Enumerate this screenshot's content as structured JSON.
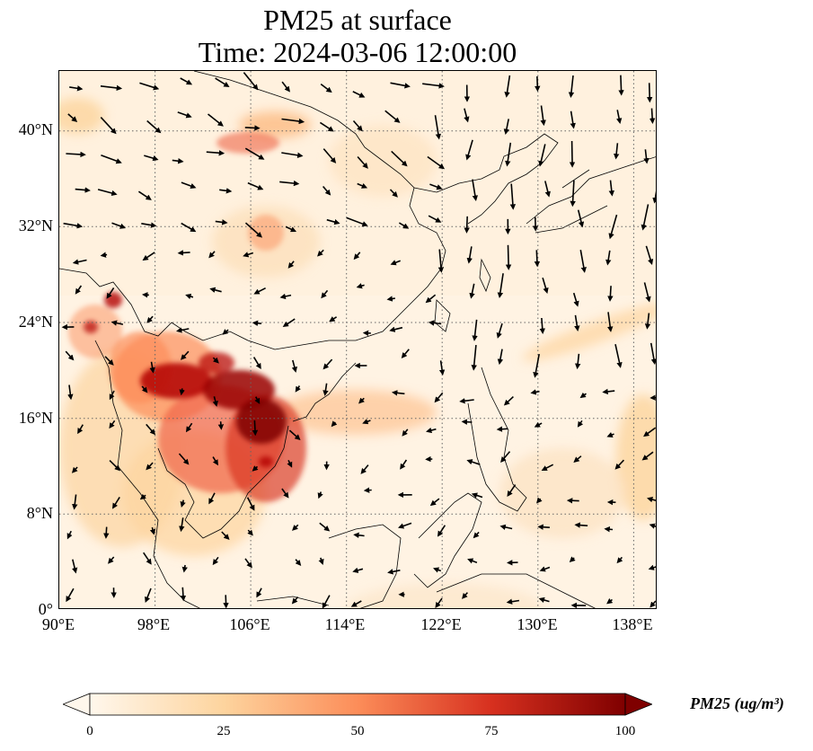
{
  "title": {
    "line1": "PM25 at surface",
    "line2": "Time: 2024-03-06 12:00:00"
  },
  "map": {
    "projection": "PlateCarree",
    "lon_range": [
      90,
      140
    ],
    "lat_range": [
      0,
      45
    ],
    "gridlines": "dotted",
    "lat_ticks": [
      "40°N",
      "32°N",
      "24°N",
      "16°N",
      "8°N",
      "0°"
    ],
    "lon_ticks": [
      "90°E",
      "98°E",
      "106°E",
      "114°E",
      "122°E",
      "130°E",
      "138°E"
    ],
    "field": "PM25",
    "overlay": "wind vectors (arrows)",
    "hotspot_region": "Myanmar / Laos / northern Vietnam",
    "colormap": "OrRd"
  },
  "colorbar": {
    "label": "PM25 (ug/m³)",
    "range": [
      0,
      100
    ],
    "ticks": [
      "0",
      "25",
      "50",
      "75",
      "100"
    ],
    "extend": "both",
    "colors": [
      "#fff7ec",
      "#fdd49e",
      "#fc8d59",
      "#d7301f",
      "#7f0000"
    ]
  }
}
